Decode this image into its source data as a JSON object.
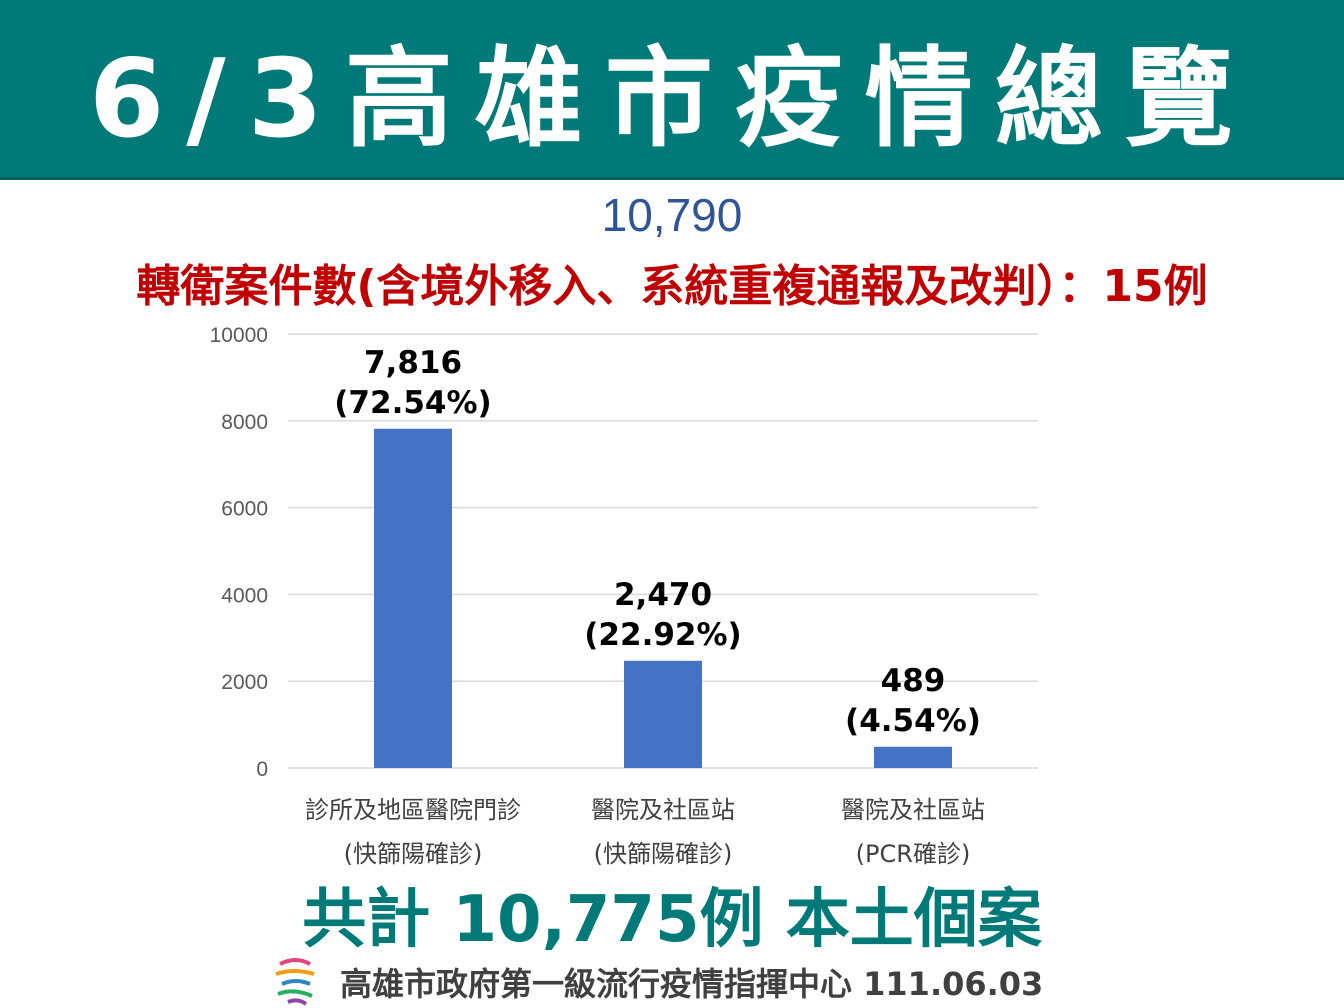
{
  "header": {
    "title": "6/3高雄市疫情總覽"
  },
  "total_reported": "10,790",
  "transfer_note": "轉衛案件數(含境外移入、系統重複通報及改判）：15例",
  "summary": "共計 10,775例 本土個案",
  "footer": {
    "organization": "高雄市政府第一級流行疫情指揮中心 111.06.03",
    "logo_icon": "kaohsiung-city-logo-icon"
  },
  "colors": {
    "banner": "#007a78",
    "bar": "#4472c4",
    "note": "#c00000",
    "total": "#2f5597",
    "summary": "#007a78"
  },
  "chart_data": {
    "type": "bar",
    "categories": [
      [
        "診所及地區醫院門診",
        "(快篩陽確診)"
      ],
      [
        "醫院及社區站",
        "(快篩陽確診)"
      ],
      [
        "醫院及社區站",
        "(PCR確診)"
      ]
    ],
    "values": [
      7816,
      2470,
      489
    ],
    "value_labels": [
      "7,816",
      "2,470",
      "489"
    ],
    "percent_labels": [
      "(72.54%)",
      "(22.92%)",
      "(4.54%)"
    ],
    "ylim": [
      0,
      10000
    ],
    "yticks": [
      0,
      2000,
      4000,
      6000,
      8000,
      10000
    ],
    "grid": true,
    "title": "",
    "xlabel": "",
    "ylabel": ""
  }
}
